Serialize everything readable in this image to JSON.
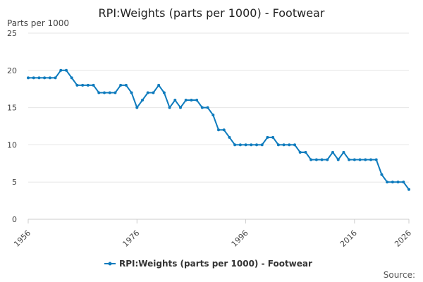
{
  "chart_data": {
    "type": "line",
    "title": "RPI:Weights (parts per 1000) - Footwear",
    "ylabel": "Parts per 1000",
    "xlabel": "",
    "ylim": [
      0,
      25
    ],
    "xlim": [
      1956,
      2026
    ],
    "y_ticks": [
      0,
      5,
      10,
      15,
      20,
      25
    ],
    "x_ticks": [
      1956,
      1976,
      1996,
      2016,
      2026
    ],
    "grid": true,
    "legend_position": "bottom",
    "series": [
      {
        "name": "RPI:Weights (parts per 1000) - Footwear",
        "color": "#0e7bbd",
        "points": [
          [
            1956,
            19
          ],
          [
            1957,
            19
          ],
          [
            1958,
            19
          ],
          [
            1959,
            19
          ],
          [
            1960,
            19
          ],
          [
            1961,
            19
          ],
          [
            1962,
            20
          ],
          [
            1963,
            20
          ],
          [
            1964,
            19
          ],
          [
            1965,
            18
          ],
          [
            1966,
            18
          ],
          [
            1967,
            18
          ],
          [
            1968,
            18
          ],
          [
            1969,
            17
          ],
          [
            1970,
            17
          ],
          [
            1971,
            17
          ],
          [
            1972,
            17
          ],
          [
            1973,
            18
          ],
          [
            1974,
            18
          ],
          [
            1975,
            17
          ],
          [
            1976,
            15
          ],
          [
            1977,
            16
          ],
          [
            1978,
            17
          ],
          [
            1979,
            17
          ],
          [
            1980,
            18
          ],
          [
            1981,
            17
          ],
          [
            1982,
            15
          ],
          [
            1983,
            16
          ],
          [
            1984,
            15
          ],
          [
            1985,
            16
          ],
          [
            1986,
            16
          ],
          [
            1987,
            16
          ],
          [
            1988,
            15
          ],
          [
            1989,
            15
          ],
          [
            1990,
            14
          ],
          [
            1991,
            12
          ],
          [
            1992,
            12
          ],
          [
            1993,
            11
          ],
          [
            1994,
            10
          ],
          [
            1995,
            10
          ],
          [
            1996,
            10
          ],
          [
            1997,
            10
          ],
          [
            1998,
            10
          ],
          [
            1999,
            10
          ],
          [
            2000,
            11
          ],
          [
            2001,
            11
          ],
          [
            2002,
            10
          ],
          [
            2003,
            10
          ],
          [
            2004,
            10
          ],
          [
            2005,
            10
          ],
          [
            2006,
            9
          ],
          [
            2007,
            9
          ],
          [
            2008,
            8
          ],
          [
            2009,
            8
          ],
          [
            2010,
            8
          ],
          [
            2011,
            8
          ],
          [
            2012,
            9
          ],
          [
            2013,
            8
          ],
          [
            2014,
            9
          ],
          [
            2015,
            8
          ],
          [
            2016,
            8
          ],
          [
            2017,
            8
          ],
          [
            2018,
            8
          ],
          [
            2019,
            8
          ],
          [
            2020,
            8
          ],
          [
            2021,
            6
          ],
          [
            2022,
            5
          ],
          [
            2023,
            5
          ],
          [
            2024,
            5
          ],
          [
            2025,
            5
          ],
          [
            2026,
            4
          ]
        ]
      }
    ],
    "source_label": "Source:"
  }
}
